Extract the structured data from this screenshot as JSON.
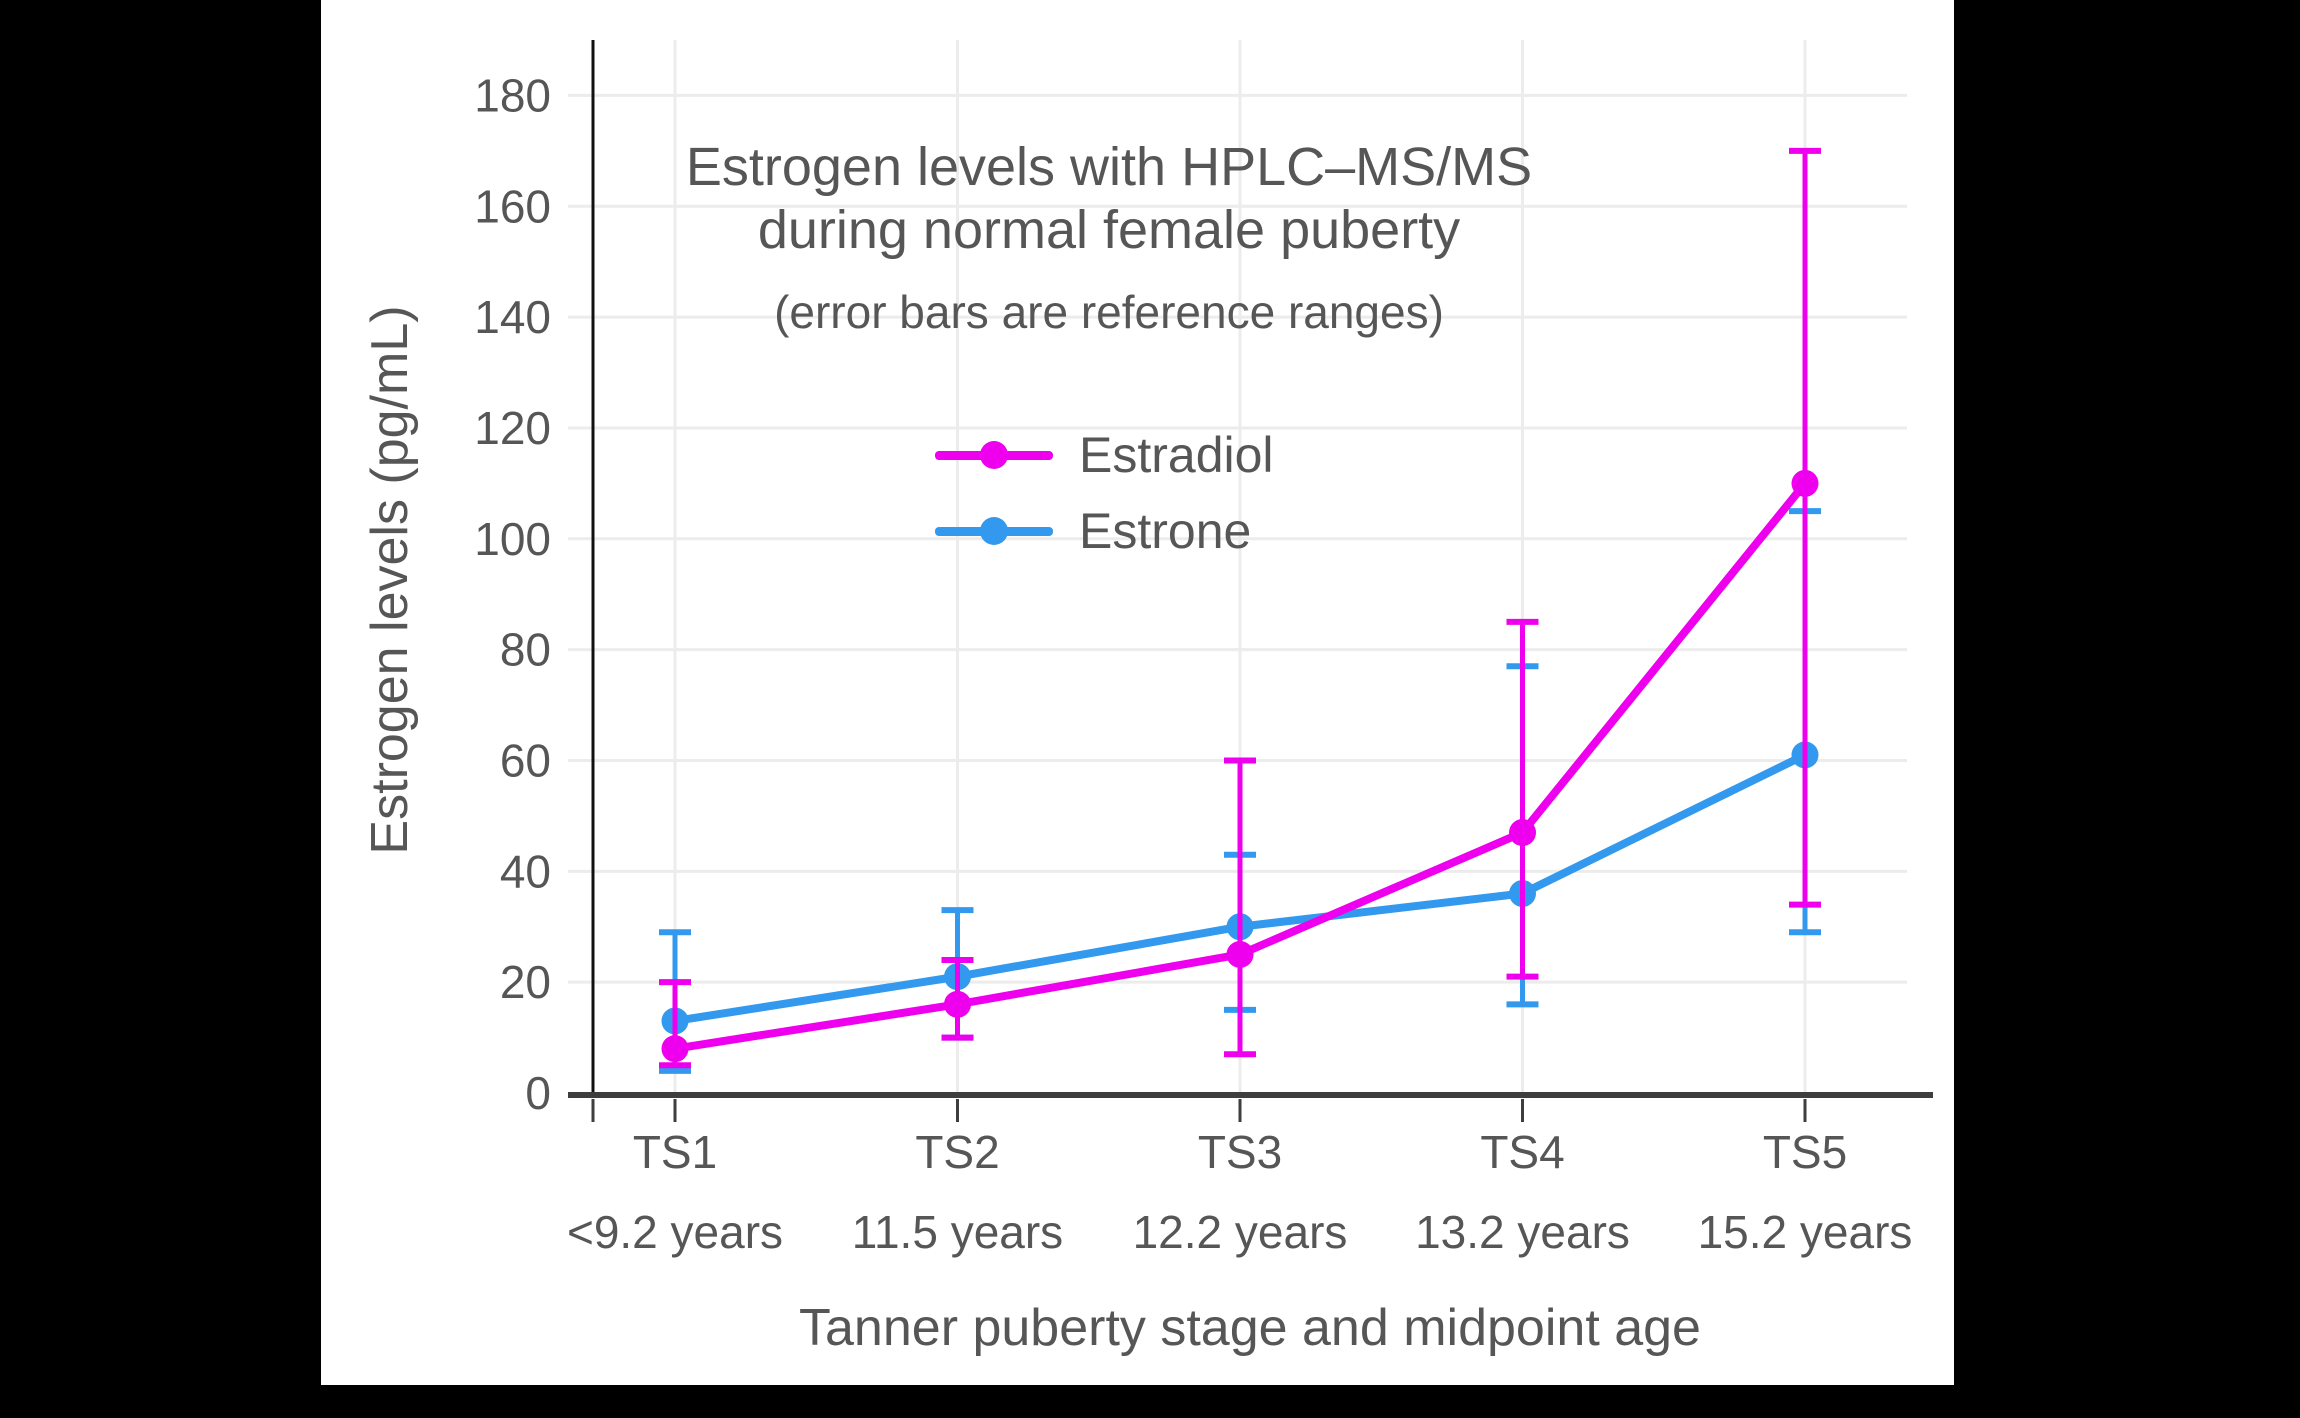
{
  "window": {
    "background": "#000000",
    "chart_background": "#ffffff"
  },
  "title": {
    "line1": "Estrogen levels with HPLC–MS/MS",
    "line2": "during normal female puberty",
    "subtitle": "(error bars are reference ranges)"
  },
  "legend": {
    "items": [
      {
        "label": "Estradiol",
        "color": "#EE00EE"
      },
      {
        "label": "Estrone",
        "color": "#3399EE"
      }
    ]
  },
  "axes": {
    "y_label": "Estrogen levels (pg/mL)",
    "x_label": "Tanner puberty stage and midpoint age"
  },
  "colors": {
    "grid": "#ECECEC",
    "axis": "#3E3E3E",
    "y_axis": "#111111",
    "text": "#565656"
  },
  "chart_data": {
    "type": "line",
    "title": "Estrogen levels with HPLC–MS/MS during normal female puberty",
    "subtitle": "(error bars are reference ranges)",
    "xlabel": "Tanner puberty stage and midpoint age",
    "ylabel": "Estrogen levels (pg/mL)",
    "ylim": [
      0,
      190
    ],
    "y_ticks": [
      0,
      20,
      40,
      60,
      80,
      100,
      120,
      140,
      160,
      180
    ],
    "grid": true,
    "legend_position": "upper-center-inside",
    "categories": [
      "TS1",
      "TS2",
      "TS3",
      "TS4",
      "TS5"
    ],
    "category_ages": [
      "<9.2 years",
      "11.5 years",
      "12.2 years",
      "13.2 years",
      "15.2 years"
    ],
    "error_bar_meaning": "reference ranges",
    "series": [
      {
        "name": "Estrone",
        "color": "#3399EE",
        "values": [
          13,
          21,
          30,
          36,
          61
        ],
        "err_low": [
          4,
          10,
          15,
          16,
          29
        ],
        "err_high": [
          29,
          33,
          43,
          77,
          105
        ]
      },
      {
        "name": "Estradiol",
        "color": "#EE00EE",
        "values": [
          8,
          16,
          25,
          47,
          110
        ],
        "err_low": [
          5,
          10,
          7,
          21,
          34
        ],
        "err_high": [
          20,
          24,
          60,
          85,
          170
        ]
      }
    ]
  }
}
